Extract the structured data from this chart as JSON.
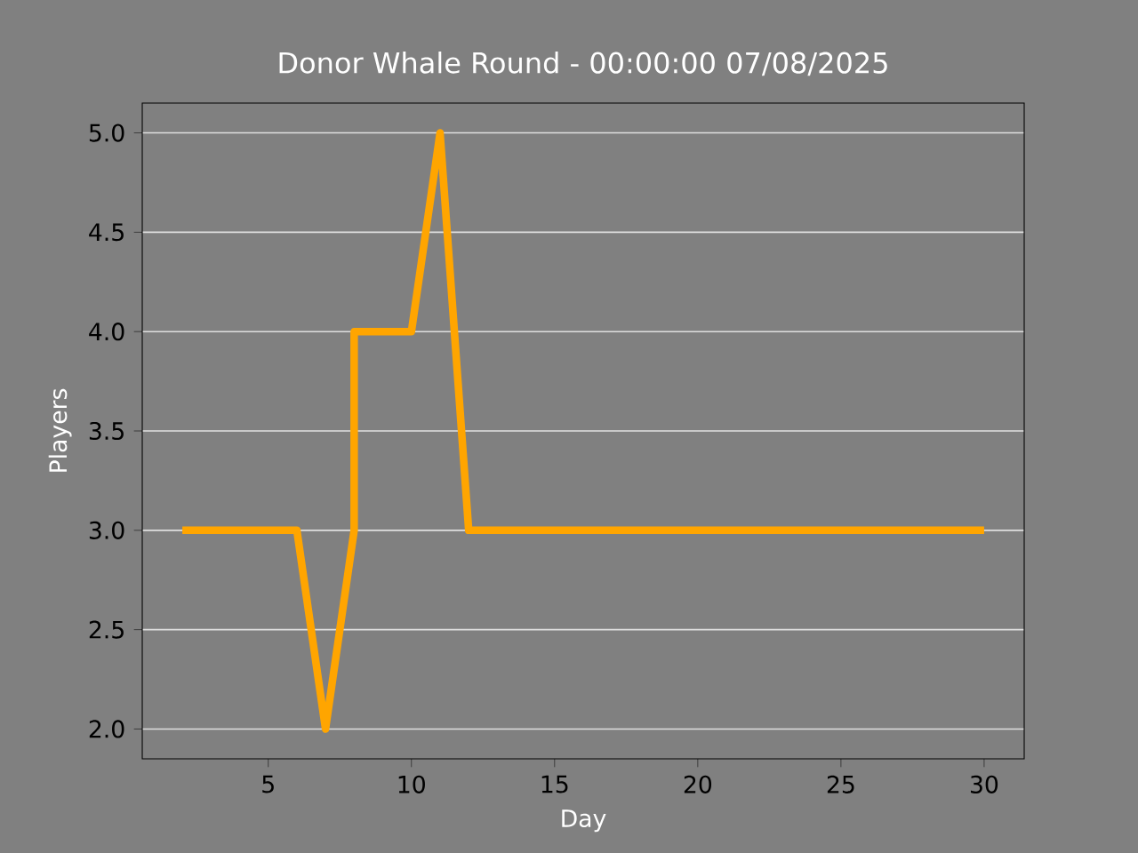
{
  "chart_data": {
    "type": "line",
    "title": "Donor Whale Round - 00:00:00 07/08/2025",
    "xlabel": "Day",
    "ylabel": "Players",
    "x": [
      2,
      6,
      7,
      8,
      8,
      10,
      11,
      12,
      30
    ],
    "values": [
      3,
      3,
      2,
      3,
      4,
      4,
      5,
      3,
      3
    ],
    "color": "#ffa500",
    "marker": "none",
    "line_style": "solid",
    "xlim": [
      0.6,
      31.4
    ],
    "ylim": [
      1.85,
      5.15
    ],
    "xticks": [
      5,
      10,
      15,
      20,
      25,
      30
    ],
    "yticks": [
      {
        "value": 2,
        "label": "2.0"
      },
      {
        "value": 2.5,
        "label": "2.5"
      },
      {
        "value": 3,
        "label": "3.0"
      },
      {
        "value": 3.5,
        "label": "3.5"
      },
      {
        "value": 4,
        "label": "4.0"
      },
      {
        "value": 4.5,
        "label": "4.5"
      },
      {
        "value": 5,
        "label": "5.0"
      }
    ],
    "grid": "y"
  }
}
